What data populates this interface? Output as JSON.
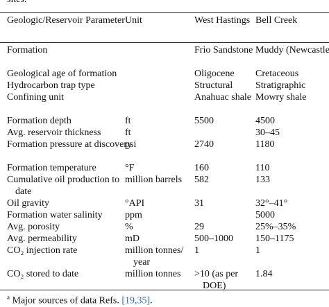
{
  "caption_tail": "sites.",
  "table": {
    "header": [
      "Geologic/Reservoir Parameter",
      "Unit",
      "West Hastings",
      "Bell Creek"
    ],
    "rows": [
      [
        "Formation",
        null,
        "Frio Sandstone",
        "Muddy (Newcastle)"
      ],
      [
        "Geological age of formation",
        null,
        "Oligocene",
        "Cretaceous"
      ],
      [
        "Hydrocarbon trap type",
        null,
        "Structural",
        "Stratigraphic"
      ],
      [
        "Confining unit",
        null,
        "Anahuac shale",
        "Mowry shale"
      ],
      [
        "Formation depth",
        "ft",
        "5500",
        "4500"
      ],
      [
        "Avg. reservoir thickness",
        "ft",
        null,
        "30–45"
      ],
      [
        "Formation pressure at discovery",
        "psi",
        "2740",
        "1180"
      ],
      [
        "Formation temperature",
        "°F",
        "160",
        "110"
      ],
      [
        "Cumulative oil production to date",
        "million barrels",
        "582",
        "133"
      ],
      [
        "Oil gravity",
        "°API",
        "31",
        "32°–41°"
      ],
      [
        "Formation water salinity",
        "ppm",
        null,
        "5000"
      ],
      [
        "Avg. porosity",
        "%",
        "29",
        "25%–35%"
      ],
      [
        "Avg. permeability",
        "mD",
        "500–1000",
        "150–1175"
      ],
      [
        "CO₂ injection rate",
        "million tonnes/ year",
        "1",
        "1"
      ],
      [
        "CO₂ stored to date",
        "million tonnes",
        ">10 (as per DOE)",
        "1.84"
      ]
    ]
  },
  "footnote": {
    "marker": "a",
    "text": "Major sources of data Refs.",
    "refs": "[19,35]",
    "suffix": "."
  }
}
